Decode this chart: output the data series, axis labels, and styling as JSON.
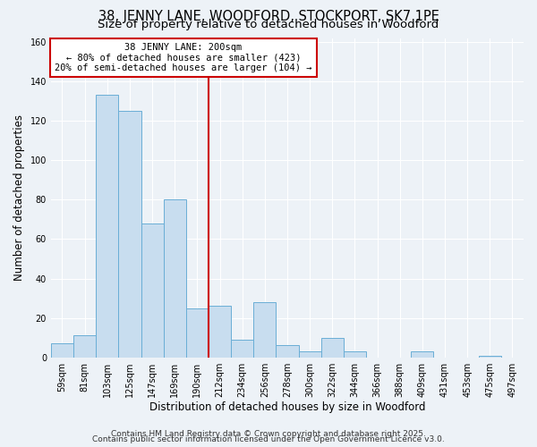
{
  "title": "38, JENNY LANE, WOODFORD, STOCKPORT, SK7 1PE",
  "subtitle": "Size of property relative to detached houses in Woodford",
  "xlabel": "Distribution of detached houses by size in Woodford",
  "ylabel": "Number of detached properties",
  "categories": [
    "59sqm",
    "81sqm",
    "103sqm",
    "125sqm",
    "147sqm",
    "169sqm",
    "190sqm",
    "212sqm",
    "234sqm",
    "256sqm",
    "278sqm",
    "300sqm",
    "322sqm",
    "344sqm",
    "366sqm",
    "388sqm",
    "409sqm",
    "431sqm",
    "453sqm",
    "475sqm",
    "497sqm"
  ],
  "values": [
    7,
    11,
    133,
    125,
    68,
    80,
    25,
    26,
    9,
    28,
    6,
    3,
    10,
    3,
    0,
    0,
    3,
    0,
    0,
    1,
    0
  ],
  "bar_color": "#c8ddef",
  "bar_edge_color": "#6aaed6",
  "vline_color": "#cc0000",
  "annotation_title": "38 JENNY LANE: 200sqm",
  "annotation_line1": "← 80% of detached houses are smaller (423)",
  "annotation_line2": "20% of semi-detached houses are larger (104) →",
  "annotation_box_color": "#ffffff",
  "annotation_box_edge_color": "#cc0000",
  "ylim": [
    0,
    162
  ],
  "yticks": [
    0,
    20,
    40,
    60,
    80,
    100,
    120,
    140,
    160
  ],
  "footer1": "Contains HM Land Registry data © Crown copyright and database right 2025.",
  "footer2": "Contains public sector information licensed under the Open Government Licence v3.0.",
  "background_color": "#edf2f7",
  "grid_color": "#ffffff",
  "title_fontsize": 10.5,
  "subtitle_fontsize": 9.5,
  "axis_label_fontsize": 8.5,
  "tick_fontsize": 7,
  "annotation_fontsize": 7.5,
  "footer_fontsize": 6.5
}
